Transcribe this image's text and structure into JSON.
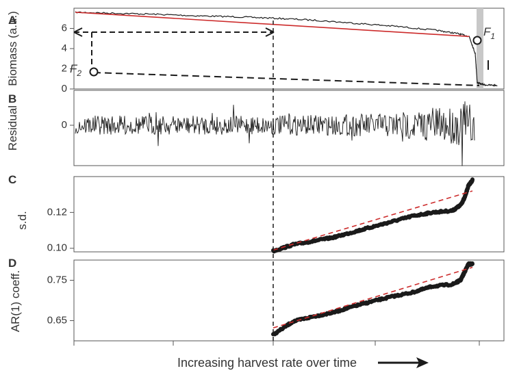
{
  "chart_data": {
    "type": "line",
    "xlabel": "Increasing harvest rate over time",
    "colors": {
      "data": "#1a1a1a",
      "fit": "#cc2a2a",
      "dashed": "#1a1a1a",
      "shade": "#c8c8c8"
    },
    "panels": [
      {
        "id": "A",
        "label": "A",
        "type": "line",
        "ylabel": "Biomass (a.u.)",
        "yticks": [
          0,
          2,
          4,
          6
        ],
        "ylim": [
          0,
          8
        ],
        "xlim": [
          0,
          1
        ],
        "series": [
          {
            "role": "data",
            "x": [
              0,
              0.1,
              0.2,
              0.3,
              0.4,
              0.5,
              0.6,
              0.7,
              0.8,
              0.9,
              0.95,
              0.98,
              0.995,
              1.0,
              1.02,
              1.05
            ],
            "y": [
              7.6,
              7.5,
              7.4,
              7.25,
              7.15,
              7.0,
              6.8,
              6.5,
              6.2,
              5.8,
              5.5,
              5.2,
              3.5,
              0.6,
              0.4,
              0.35
            ]
          },
          {
            "role": "fit",
            "x": [
              0,
              0.98
            ],
            "y": [
              7.6,
              5.2
            ]
          }
        ],
        "annotations": {
          "F1": {
            "label": "F",
            "sub": "1",
            "x": 0.98,
            "y": 5.1
          },
          "F2": {
            "label": "F",
            "sub": "2",
            "x": 0.045,
            "y": 1.8
          }
        }
      },
      {
        "id": "B",
        "label": "B",
        "type": "line",
        "ylabel": "Residual",
        "yticks": [
          0
        ],
        "ylim": [
          -1,
          1
        ]
      },
      {
        "id": "C",
        "label": "C",
        "type": "line",
        "ylabel": "s.d.",
        "yticks": [
          0.1,
          0.12
        ],
        "ytick_labels": [
          "0.10",
          "0.12"
        ],
        "ylim": [
          0.098,
          0.14
        ],
        "xlim": [
          0.5,
          1
        ],
        "series": [
          {
            "role": "data",
            "x": [
              0.5,
              0.55,
              0.6,
              0.65,
              0.7,
              0.75,
              0.8,
              0.85,
              0.9,
              0.95,
              0.97,
              0.98,
              0.99,
              1.0
            ],
            "y": [
              0.0985,
              0.102,
              0.104,
              0.106,
              0.109,
              0.112,
              0.115,
              0.118,
              0.12,
              0.121,
              0.124,
              0.128,
              0.135,
              0.138
            ]
          },
          {
            "role": "fit",
            "x": [
              0.5,
              1.0
            ],
            "y": [
              0.099,
              0.132
            ]
          }
        ]
      },
      {
        "id": "D",
        "label": "D",
        "type": "line",
        "ylabel": "AR(1) coeff.",
        "yticks": [
          0.65,
          0.75
        ],
        "ytick_labels": [
          "0.65",
          "0.75"
        ],
        "ylim": [
          0.6,
          0.8
        ],
        "xlim": [
          0.5,
          1
        ],
        "series": [
          {
            "role": "data",
            "x": [
              0.5,
              0.55,
              0.6,
              0.65,
              0.7,
              0.75,
              0.8,
              0.85,
              0.9,
              0.95,
              0.97,
              0.98,
              0.99,
              1.0
            ],
            "y": [
              0.615,
              0.648,
              0.66,
              0.67,
              0.685,
              0.698,
              0.71,
              0.72,
              0.735,
              0.74,
              0.75,
              0.77,
              0.79,
              0.79
            ]
          },
          {
            "role": "fit",
            "x": [
              0.5,
              1.0
            ],
            "y": [
              0.632,
              0.782
            ]
          }
        ]
      }
    ]
  }
}
